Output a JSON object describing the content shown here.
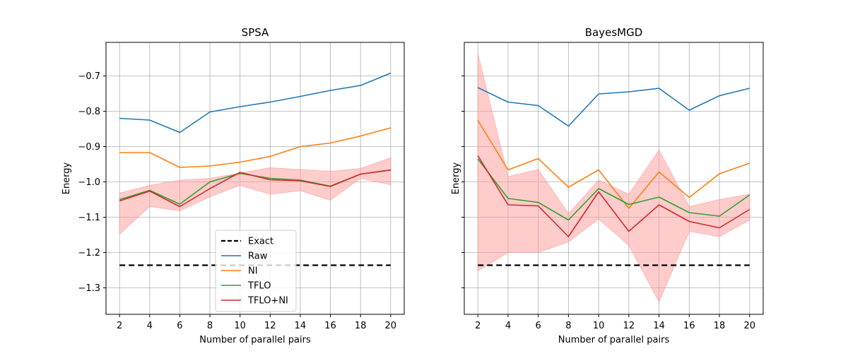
{
  "chart_data": [
    {
      "type": "line",
      "title": "SPSA",
      "xlabel": "Number of parallel pairs",
      "ylabel": "Energy",
      "xlim": [
        1.1,
        20.9
      ],
      "ylim": [
        -1.375,
        -0.605
      ],
      "xticks": [
        2,
        4,
        6,
        8,
        10,
        12,
        14,
        16,
        18,
        20
      ],
      "yticks": [
        -1.3,
        -1.2,
        -1.1,
        -1.0,
        -0.9,
        -0.8,
        -0.7
      ],
      "ytick_labels": [
        "−1.3",
        "−1.2",
        "−1.1",
        "−1.0",
        "−0.9",
        "−0.8",
        "−0.7"
      ],
      "grid": true,
      "legend_position": "lower-center",
      "x": [
        2,
        4,
        6,
        8,
        10,
        12,
        14,
        16,
        18,
        20
      ],
      "series": [
        {
          "name": "Raw",
          "color": "#1f77b4",
          "values": [
            -0.82,
            -0.825,
            -0.86,
            -0.802,
            -0.787,
            -0.774,
            -0.758,
            -0.741,
            -0.727,
            -0.692
          ]
        },
        {
          "name": "NI",
          "color": "#ff7f0e",
          "values": [
            -0.917,
            -0.917,
            -0.959,
            -0.955,
            -0.944,
            -0.928,
            -0.9,
            -0.89,
            -0.87,
            -0.847
          ]
        },
        {
          "name": "TFLO",
          "color": "#2ca02c",
          "values": [
            -1.05,
            -1.024,
            -1.063,
            -1.0,
            -0.976,
            -0.99,
            -0.995,
            -1.012,
            -0.978,
            -0.967
          ]
        },
        {
          "name": "TFLO+NI",
          "color": "#d62728",
          "values": [
            -1.054,
            -1.026,
            -1.07,
            -1.019,
            -0.973,
            -0.994,
            -0.997,
            -1.013,
            -0.978,
            -0.966
          ]
        }
      ],
      "band": {
        "color": "#ff9999",
        "lower": [
          -1.148,
          -1.07,
          -1.082,
          -1.042,
          -1.01,
          -1.035,
          -1.025,
          -1.052,
          -0.99,
          -1.008
        ],
        "upper": [
          -1.032,
          -1.01,
          -0.995,
          -0.99,
          -0.975,
          -0.96,
          -0.965,
          -0.97,
          -0.962,
          -0.932
        ]
      },
      "exact": {
        "name": "Exact",
        "value": -1.236
      },
      "legend": [
        "Exact",
        "Raw",
        "NI",
        "TFLO",
        "TFLO+NI"
      ]
    },
    {
      "type": "line",
      "title": "BayesMGD",
      "xlabel": "Number of parallel pairs",
      "ylabel": "Energy",
      "xlim": [
        1.1,
        20.9
      ],
      "ylim": [
        -1.375,
        -0.605
      ],
      "xticks": [
        2,
        4,
        6,
        8,
        10,
        12,
        14,
        16,
        18,
        20
      ],
      "yticks": [
        -1.3,
        -1.2,
        -1.1,
        -1.0,
        -0.9,
        -0.8,
        -0.7
      ],
      "grid": true,
      "x": [
        2,
        4,
        6,
        8,
        10,
        12,
        14,
        16,
        18,
        20
      ],
      "series": [
        {
          "name": "Raw",
          "color": "#1f77b4",
          "values": [
            -0.733,
            -0.774,
            -0.784,
            -0.842,
            -0.751,
            -0.745,
            -0.735,
            -0.797,
            -0.756,
            -0.735
          ]
        },
        {
          "name": "NI",
          "color": "#ff7f0e",
          "values": [
            -0.826,
            -0.966,
            -0.934,
            -1.015,
            -0.966,
            -1.075,
            -0.972,
            -1.044,
            -0.977,
            -0.947
          ]
        },
        {
          "name": "TFLO",
          "color": "#2ca02c",
          "values": [
            -0.935,
            -1.047,
            -1.058,
            -1.108,
            -1.019,
            -1.064,
            -1.043,
            -1.087,
            -1.097,
            -1.037
          ]
        },
        {
          "name": "TFLO+NI",
          "color": "#d62728",
          "values": [
            -0.926,
            -1.065,
            -1.068,
            -1.155,
            -1.028,
            -1.14,
            -1.065,
            -1.112,
            -1.13,
            -1.078
          ]
        }
      ],
      "band": {
        "color": "#ff9999",
        "lower": [
          -1.252,
          -1.2,
          -1.2,
          -1.17,
          -1.105,
          -1.18,
          -1.34,
          -1.14,
          -1.155,
          -1.108
        ],
        "upper": [
          -0.637,
          -0.985,
          -0.965,
          -1.09,
          -0.995,
          -1.035,
          -0.91,
          -1.07,
          -1.05,
          -1.035
        ]
      },
      "exact": {
        "name": "Exact",
        "value": -1.236
      }
    }
  ]
}
